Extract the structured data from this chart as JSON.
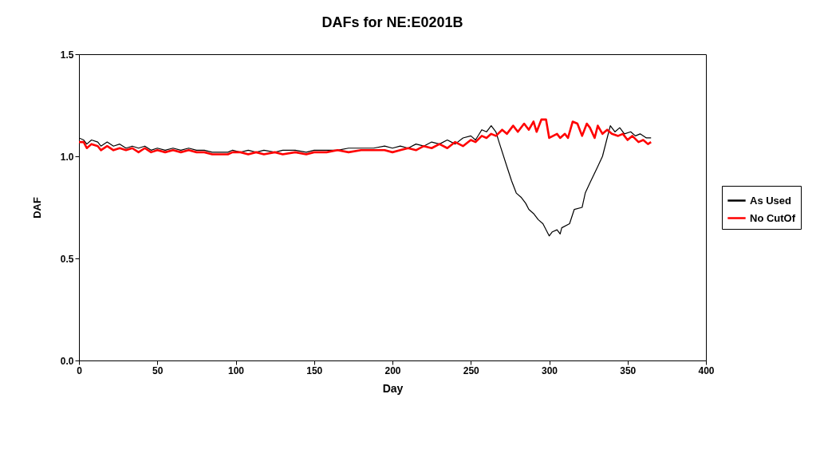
{
  "chart_data": {
    "type": "line",
    "title": "DAFs for NE:E0201B",
    "xlabel": "Day",
    "ylabel": "DAF",
    "xlim": [
      0,
      400
    ],
    "xticks": [
      0,
      50,
      100,
      150,
      200,
      250,
      300,
      350,
      400
    ],
    "ylim": [
      0,
      1.5
    ],
    "yticks": [
      {
        "value": 0,
        "label": "0.0"
      },
      {
        "value": 0.5,
        "label": "0.5"
      },
      {
        "value": 1,
        "label": "1.0"
      },
      {
        "value": 1.5,
        "label": "1.5"
      }
    ],
    "legend": "right",
    "grid": false,
    "marker": "none",
    "series": [
      {
        "name": "As Used",
        "color": "#000000",
        "x": [
          0,
          3,
          5,
          8,
          12,
          14,
          18,
          22,
          26,
          30,
          34,
          38,
          42,
          46,
          50,
          55,
          60,
          65,
          70,
          75,
          80,
          85,
          95,
          98,
          103,
          108,
          113,
          118,
          125,
          130,
          138,
          145,
          150,
          158,
          165,
          172,
          180,
          188,
          195,
          200,
          205,
          210,
          215,
          220,
          225,
          230,
          235,
          240,
          245,
          250,
          253,
          257,
          260,
          263,
          266,
          268,
          273,
          276,
          279,
          282,
          285,
          287,
          290,
          293,
          296,
          300,
          302,
          305,
          307,
          308,
          313,
          316,
          321,
          323,
          326,
          331,
          334,
          339,
          342,
          345,
          348,
          352,
          355,
          358,
          362,
          365
        ],
        "values": [
          1.09,
          1.08,
          1.06,
          1.08,
          1.07,
          1.05,
          1.07,
          1.05,
          1.06,
          1.04,
          1.05,
          1.04,
          1.05,
          1.03,
          1.04,
          1.03,
          1.04,
          1.03,
          1.04,
          1.03,
          1.03,
          1.02,
          1.02,
          1.03,
          1.02,
          1.03,
          1.02,
          1.03,
          1.02,
          1.03,
          1.03,
          1.02,
          1.03,
          1.03,
          1.03,
          1.04,
          1.04,
          1.04,
          1.05,
          1.04,
          1.05,
          1.04,
          1.06,
          1.05,
          1.07,
          1.06,
          1.08,
          1.06,
          1.09,
          1.1,
          1.08,
          1.13,
          1.12,
          1.15,
          1.12,
          1.07,
          0.95,
          0.88,
          0.82,
          0.8,
          0.77,
          0.74,
          0.72,
          0.69,
          0.67,
          0.61,
          0.63,
          0.64,
          0.62,
          0.65,
          0.67,
          0.74,
          0.75,
          0.82,
          0.87,
          0.95,
          1.0,
          1.15,
          1.12,
          1.14,
          1.11,
          1.12,
          1.1,
          1.11,
          1.09,
          1.09
        ]
      },
      {
        "name": "No CutOf",
        "color": "#ff0000",
        "x": [
          0,
          3,
          5,
          8,
          12,
          14,
          18,
          22,
          26,
          30,
          34,
          38,
          42,
          46,
          50,
          55,
          60,
          65,
          70,
          75,
          80,
          85,
          95,
          98,
          103,
          108,
          113,
          118,
          125,
          130,
          138,
          145,
          150,
          158,
          165,
          172,
          180,
          188,
          195,
          200,
          205,
          210,
          215,
          220,
          225,
          230,
          235,
          240,
          245,
          250,
          253,
          257,
          260,
          263,
          266,
          270,
          273,
          277,
          280,
          284,
          287,
          290,
          292,
          295,
          298,
          300,
          305,
          307,
          310,
          312,
          315,
          318,
          321,
          324,
          326,
          329,
          331,
          334,
          337,
          340,
          344,
          347,
          350,
          353,
          357,
          360,
          363,
          365
        ],
        "values": [
          1.07,
          1.07,
          1.04,
          1.06,
          1.05,
          1.03,
          1.05,
          1.03,
          1.04,
          1.03,
          1.04,
          1.02,
          1.04,
          1.02,
          1.03,
          1.02,
          1.03,
          1.02,
          1.03,
          1.02,
          1.02,
          1.01,
          1.01,
          1.02,
          1.02,
          1.01,
          1.02,
          1.01,
          1.02,
          1.01,
          1.02,
          1.01,
          1.02,
          1.02,
          1.03,
          1.02,
          1.03,
          1.03,
          1.03,
          1.02,
          1.03,
          1.04,
          1.03,
          1.05,
          1.04,
          1.06,
          1.04,
          1.07,
          1.05,
          1.08,
          1.07,
          1.1,
          1.09,
          1.11,
          1.1,
          1.13,
          1.11,
          1.15,
          1.12,
          1.16,
          1.13,
          1.17,
          1.12,
          1.18,
          1.18,
          1.09,
          1.11,
          1.09,
          1.11,
          1.09,
          1.17,
          1.16,
          1.1,
          1.16,
          1.14,
          1.09,
          1.15,
          1.11,
          1.13,
          1.11,
          1.1,
          1.11,
          1.08,
          1.1,
          1.07,
          1.08,
          1.06,
          1.07
        ]
      }
    ]
  }
}
